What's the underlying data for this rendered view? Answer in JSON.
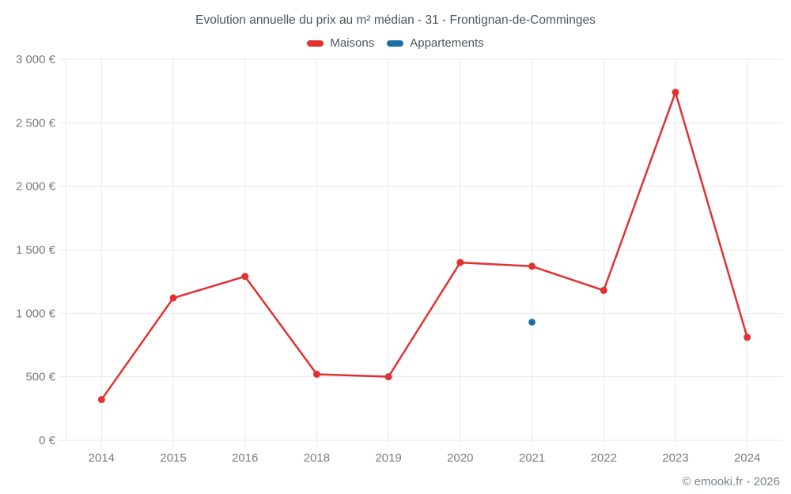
{
  "title": "Evolution annuelle du prix au m² médian - 31 - Frontignan-de-Comminges",
  "footer": "© emooki.fr - 2026",
  "legend": [
    {
      "label": "Maisons",
      "color": "#e03232"
    },
    {
      "label": "Appartements",
      "color": "#1d6fa5"
    }
  ],
  "chart_data": {
    "type": "line",
    "title": "Evolution annuelle du prix au m² médian - 31 - Frontignan-de-Comminges",
    "xlabel": "",
    "ylabel": "",
    "categories": [
      "2014",
      "2015",
      "2016",
      "2018",
      "2019",
      "2020",
      "2021",
      "2022",
      "2023",
      "2024"
    ],
    "series": [
      {
        "name": "Maisons",
        "color": "#e03232",
        "point_radius": 4.5,
        "values": [
          320,
          1120,
          1290,
          520,
          500,
          1400,
          1370,
          1180,
          2740,
          810
        ]
      },
      {
        "name": "Appartements",
        "color": "#1d6fa5",
        "point_radius": 4.3,
        "values": [
          null,
          null,
          null,
          null,
          null,
          null,
          930,
          null,
          null,
          null
        ]
      }
    ],
    "ylim": [
      0,
      3000
    ],
    "y_tick_step": 500,
    "y_tick_labels": [
      "0 €",
      "500 €",
      "1 000 €",
      "1 500 €",
      "2 000 €",
      "2 500 €",
      "3 000 €"
    ],
    "grid": true,
    "legend_position": "top"
  },
  "colors": {
    "grid": "#e9e9e9",
    "axis_text": "#7b7b7b",
    "title_text": "#4d565c",
    "footer_text": "#7d8488"
  }
}
